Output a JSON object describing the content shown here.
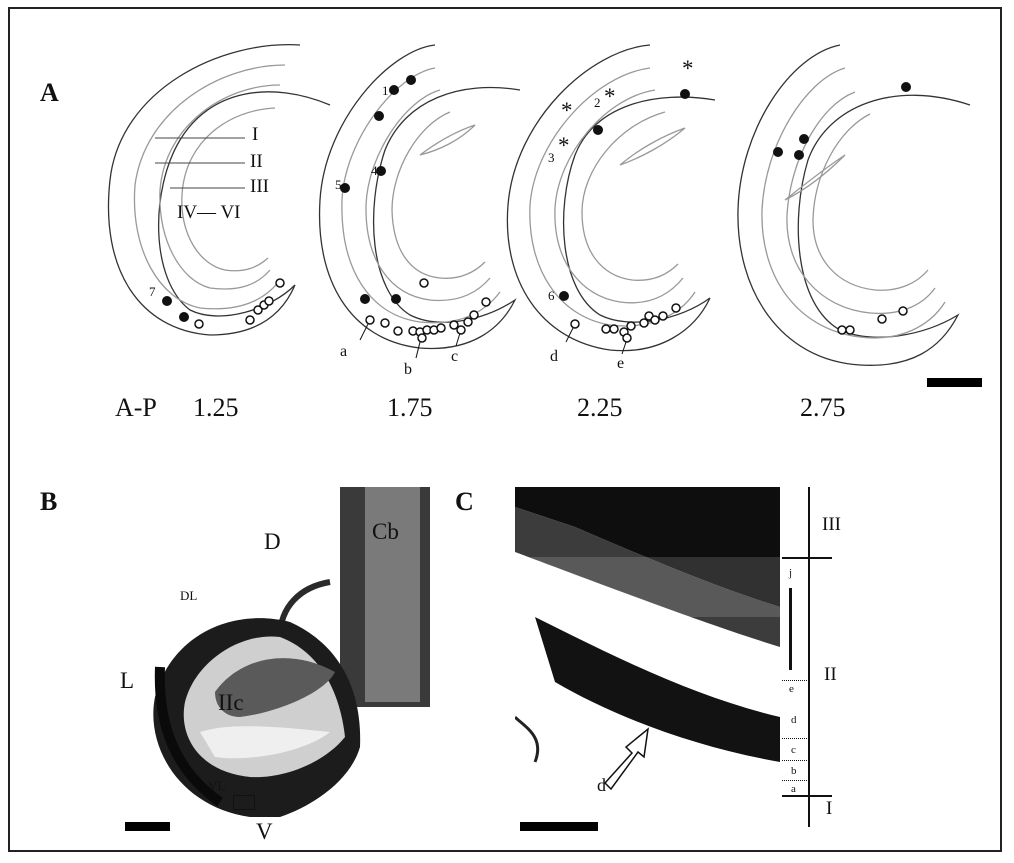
{
  "figure": {
    "panels": {
      "a": "A",
      "b": "B",
      "c": "C"
    },
    "panel_a": {
      "layer_labels": {
        "l1": "I",
        "l2": "II",
        "l3": "III",
        "l46": "IV— VI"
      },
      "ap_prefix": "A-P",
      "ap_values": [
        "1.25",
        "1.75",
        "2.25",
        "2.75"
      ],
      "cell_numbers": [
        "1",
        "2",
        "3",
        "4",
        "5",
        "6",
        "7"
      ],
      "letter_labels": [
        "a",
        "b",
        "c",
        "d",
        "e"
      ],
      "star_glyph": "*"
    },
    "panel_b": {
      "orientation": {
        "d": "D",
        "dl": "DL",
        "l": "L",
        "vl": "VL",
        "v": "V"
      },
      "cb": "Cb",
      "ic": "IIc"
    },
    "panel_c": {
      "layers": {
        "l3": "III",
        "l2": "II",
        "l1": "I"
      },
      "sublayers": {
        "j": "j",
        "e": "e",
        "d": "d",
        "c": "c",
        "b": "b",
        "a": "a"
      },
      "arrow_label": "d"
    },
    "colors": {
      "ink": "#111111",
      "background": "#ffffff",
      "tissue_dark": "#1a1a1a"
    }
  }
}
